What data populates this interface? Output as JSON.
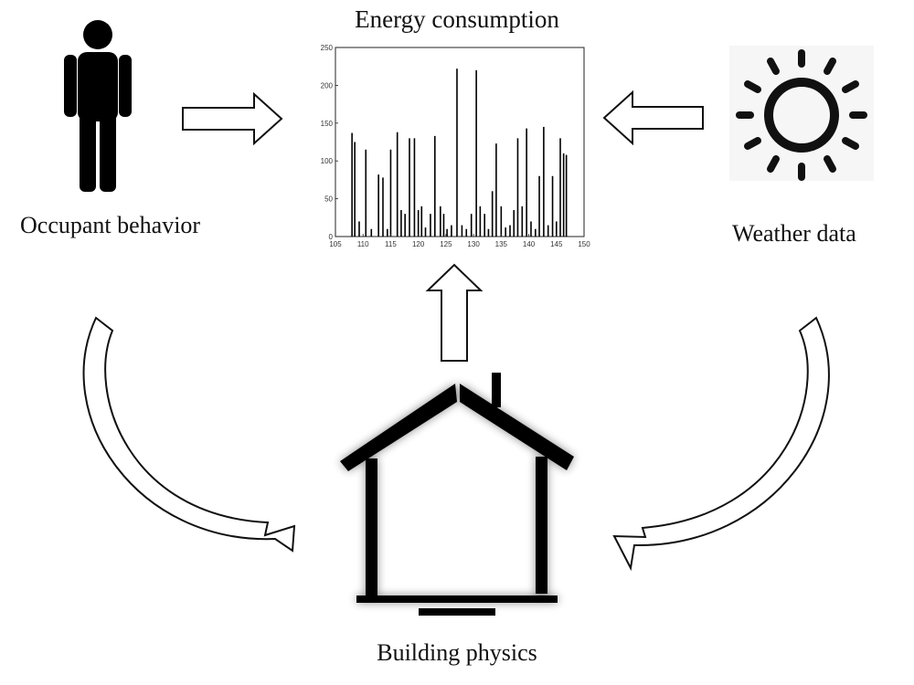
{
  "diagram": {
    "title": "Energy consumption",
    "nodes": [
      {
        "id": "occupant",
        "label": "Occupant behavior",
        "icon": "person-icon"
      },
      {
        "id": "weather",
        "label": "Weather data",
        "icon": "sun-icon"
      },
      {
        "id": "building",
        "label": "Building physics",
        "icon": "house-icon"
      },
      {
        "id": "energy",
        "label": "Energy consumption",
        "icon": "chart"
      }
    ],
    "edges": [
      {
        "from": "occupant",
        "to": "energy"
      },
      {
        "from": "weather",
        "to": "energy"
      },
      {
        "from": "building",
        "to": "energy"
      },
      {
        "from": "occupant",
        "to": "building"
      },
      {
        "from": "weather",
        "to": "building"
      }
    ]
  },
  "chart_data": {
    "type": "bar",
    "title": "",
    "xlabel": "",
    "ylabel": "",
    "xlim": [
      105,
      150
    ],
    "ylim": [
      0,
      250
    ],
    "xticks": [
      105,
      110,
      115,
      120,
      125,
      130,
      135,
      140,
      145,
      150
    ],
    "yticks": [
      0,
      50,
      100,
      150,
      200,
      250
    ],
    "grid": false,
    "color": "#000000",
    "x": [
      108.0,
      108.5,
      109.3,
      110.5,
      111.5,
      112.8,
      113.6,
      114.4,
      115.0,
      116.2,
      116.9,
      117.6,
      118.4,
      119.3,
      120.0,
      120.6,
      121.3,
      122.2,
      123.0,
      124.0,
      124.6,
      125.2,
      126.0,
      127.0,
      127.9,
      128.7,
      129.6,
      130.5,
      131.2,
      132.0,
      132.7,
      133.4,
      134.1,
      135.0,
      135.8,
      136.6,
      137.3,
      138.0,
      138.8,
      139.6,
      140.4,
      141.2,
      141.9,
      142.7,
      143.5,
      144.3,
      145.0,
      145.7,
      146.3,
      146.8
    ],
    "values": [
      137,
      125,
      20,
      115,
      10,
      82,
      78,
      10,
      115,
      138,
      35,
      30,
      130,
      130,
      35,
      40,
      12,
      30,
      133,
      40,
      30,
      10,
      15,
      222,
      15,
      10,
      30,
      220,
      40,
      30,
      10,
      60,
      123,
      40,
      12,
      15,
      35,
      130,
      40,
      143,
      20,
      10,
      80,
      145,
      15,
      80,
      20,
      130,
      110,
      108
    ]
  }
}
